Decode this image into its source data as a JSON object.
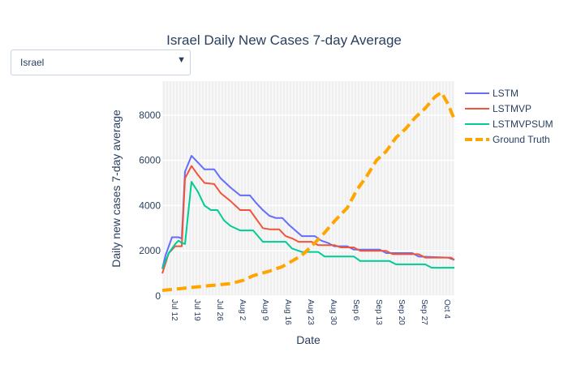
{
  "dropdown": {
    "selected": "Israel",
    "arrow_icon": "caret-down-icon"
  },
  "chart_data": {
    "type": "line",
    "title": "Israel Daily New Cases 7-day Average",
    "xlabel": "Date",
    "ylabel": "Daily new cases 7-day average",
    "xlim": [
      0,
      90
    ],
    "ylim": [
      0,
      9500
    ],
    "yticks": [
      0,
      2000,
      4000,
      6000,
      8000
    ],
    "x_tick_labels": [
      "Jul 12",
      "Jul 19",
      "Jul 26",
      "Aug 2",
      "Aug 9",
      "Aug 16",
      "Aug 23",
      "Aug 30",
      "Sep 6",
      "Sep 13",
      "Sep 20",
      "Sep 27",
      "Oct 4"
    ],
    "legend_position": "top-right",
    "grid": true,
    "series": [
      {
        "name": "LSTM",
        "color": "#636efa",
        "dash": "solid",
        "points": [
          [
            0,
            1200
          ],
          [
            1,
            1800
          ],
          [
            2,
            2200
          ],
          [
            3,
            2600
          ],
          [
            5,
            2600
          ],
          [
            6,
            2550
          ],
          [
            7,
            5500
          ],
          [
            9,
            6200
          ],
          [
            11,
            5900
          ],
          [
            13,
            5600
          ],
          [
            16,
            5600
          ],
          [
            18,
            5200
          ],
          [
            21,
            4800
          ],
          [
            24,
            4450
          ],
          [
            27,
            4450
          ],
          [
            29,
            4100
          ],
          [
            31,
            3800
          ],
          [
            33,
            3550
          ],
          [
            35,
            3450
          ],
          [
            37,
            3450
          ],
          [
            39,
            3150
          ],
          [
            41,
            2900
          ],
          [
            43,
            2650
          ],
          [
            47,
            2650
          ],
          [
            49,
            2450
          ],
          [
            51,
            2350
          ],
          [
            53,
            2200
          ],
          [
            57,
            2200
          ],
          [
            59,
            2050
          ],
          [
            67,
            2050
          ],
          [
            69,
            1900
          ],
          [
            77,
            1900
          ],
          [
            79,
            1750
          ],
          [
            88,
            1700
          ],
          [
            90,
            1600
          ]
        ]
      },
      {
        "name": "LSTMVP",
        "color": "#ef553b",
        "dash": "solid",
        "points": [
          [
            0,
            1000
          ],
          [
            2,
            1900
          ],
          [
            4,
            2200
          ],
          [
            6,
            2200
          ],
          [
            7,
            5200
          ],
          [
            9,
            5750
          ],
          [
            11,
            5350
          ],
          [
            13,
            5000
          ],
          [
            16,
            4950
          ],
          [
            18,
            4550
          ],
          [
            21,
            4200
          ],
          [
            24,
            3800
          ],
          [
            27,
            3800
          ],
          [
            29,
            3400
          ],
          [
            31,
            3000
          ],
          [
            33,
            2950
          ],
          [
            36,
            2950
          ],
          [
            38,
            2650
          ],
          [
            40,
            2550
          ],
          [
            42,
            2400
          ],
          [
            46,
            2400
          ],
          [
            48,
            2250
          ],
          [
            53,
            2250
          ],
          [
            55,
            2150
          ],
          [
            59,
            2150
          ],
          [
            61,
            2000
          ],
          [
            69,
            2000
          ],
          [
            71,
            1850
          ],
          [
            79,
            1850
          ],
          [
            81,
            1700
          ],
          [
            89,
            1700
          ],
          [
            90,
            1600
          ]
        ]
      },
      {
        "name": "LSTMVPSUM",
        "color": "#00cc96",
        "dash": "solid",
        "points": [
          [
            0,
            1200
          ],
          [
            2,
            1900
          ],
          [
            4,
            2300
          ],
          [
            5,
            2450
          ],
          [
            6,
            2350
          ],
          [
            7,
            2300
          ],
          [
            9,
            5050
          ],
          [
            11,
            4600
          ],
          [
            13,
            4000
          ],
          [
            15,
            3800
          ],
          [
            17,
            3800
          ],
          [
            19,
            3350
          ],
          [
            21,
            3100
          ],
          [
            24,
            2900
          ],
          [
            28,
            2900
          ],
          [
            31,
            2400
          ],
          [
            38,
            2400
          ],
          [
            40,
            2100
          ],
          [
            43,
            1950
          ],
          [
            48,
            1950
          ],
          [
            50,
            1750
          ],
          [
            59,
            1750
          ],
          [
            61,
            1550
          ],
          [
            70,
            1550
          ],
          [
            72,
            1400
          ],
          [
            81,
            1400
          ],
          [
            83,
            1250
          ],
          [
            90,
            1250
          ]
        ]
      },
      {
        "name": "Ground Truth",
        "color": "#ffa500",
        "dash": "dash",
        "points": [
          [
            0,
            250
          ],
          [
            7,
            350
          ],
          [
            14,
            450
          ],
          [
            21,
            550
          ],
          [
            25,
            700
          ],
          [
            28,
            900
          ],
          [
            33,
            1100
          ],
          [
            37,
            1300
          ],
          [
            40,
            1550
          ],
          [
            43,
            1800
          ],
          [
            46,
            2200
          ],
          [
            50,
            2800
          ],
          [
            53,
            3300
          ],
          [
            57,
            3900
          ],
          [
            60,
            4700
          ],
          [
            63,
            5300
          ],
          [
            66,
            6000
          ],
          [
            69,
            6400
          ],
          [
            72,
            7000
          ],
          [
            75,
            7400
          ],
          [
            78,
            7900
          ],
          [
            81,
            8300
          ],
          [
            84,
            8800
          ],
          [
            86,
            9000
          ],
          [
            88,
            8500
          ],
          [
            90,
            7800
          ]
        ]
      }
    ]
  }
}
